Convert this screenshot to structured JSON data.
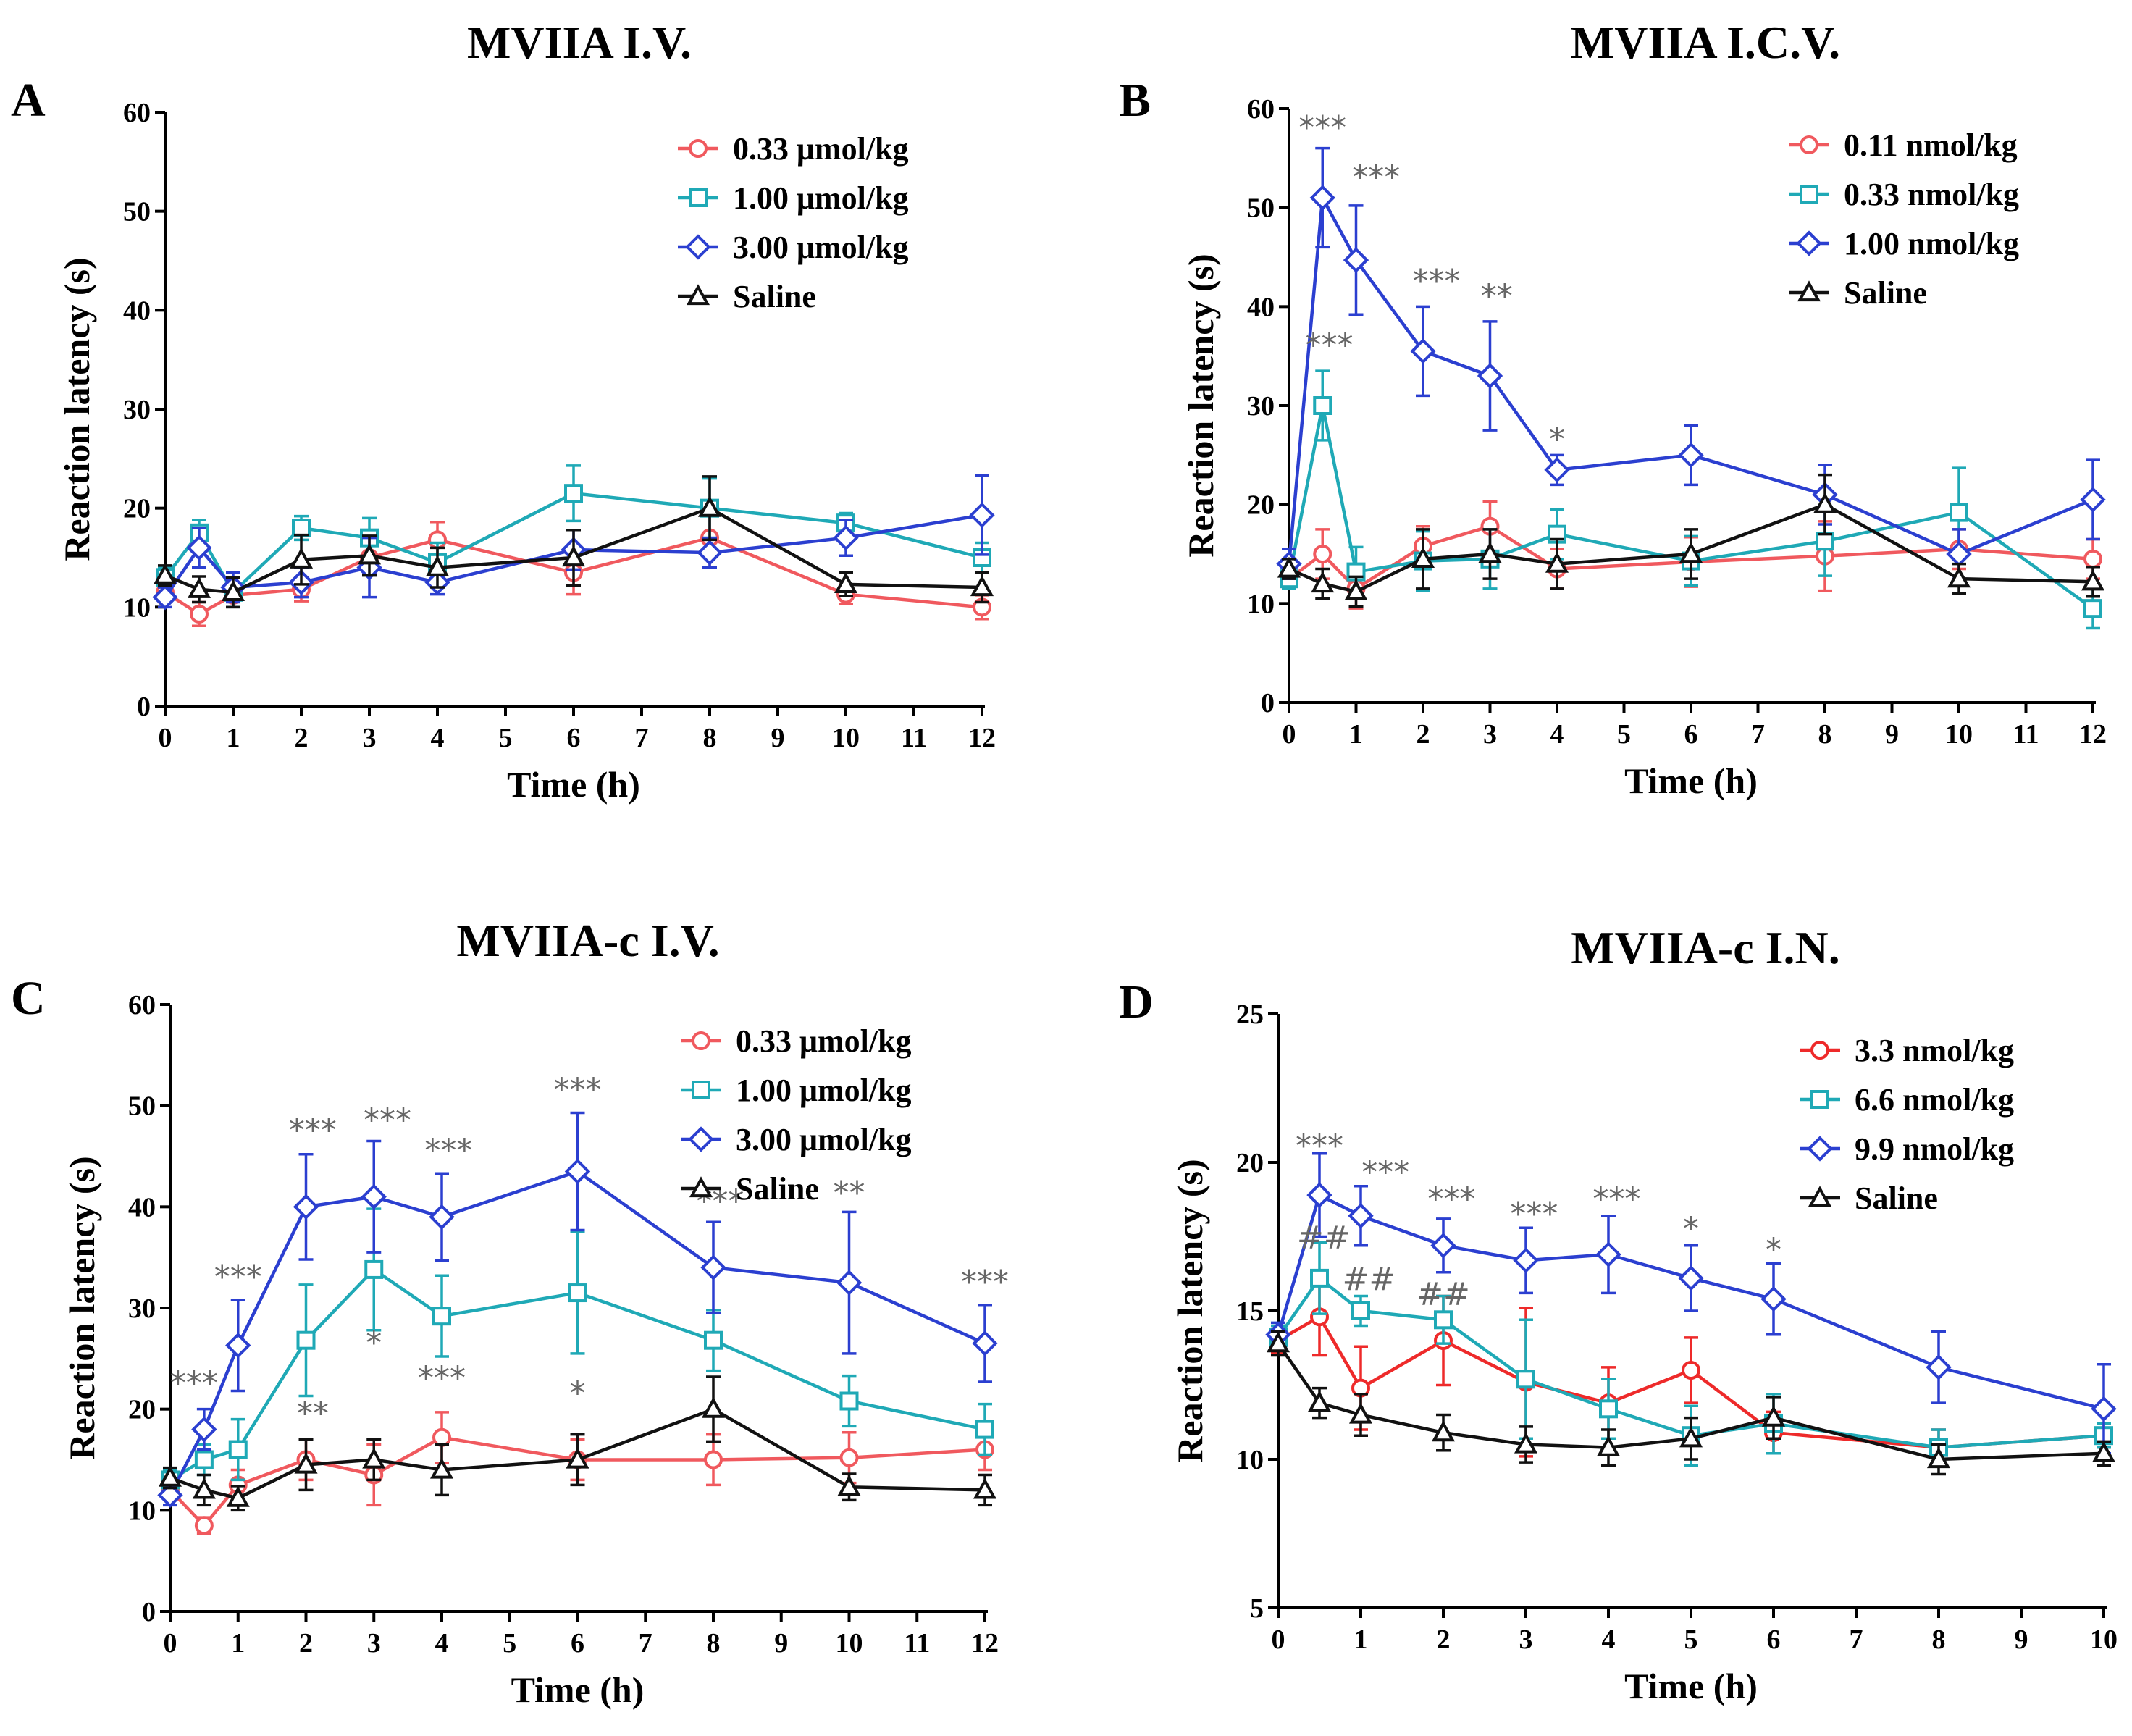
{
  "chart_data": [
    {
      "id": "A",
      "panel_label": "A",
      "title": "MVIIA I.V.",
      "type": "line",
      "xlabel": "Time (h)",
      "ylabel": "Reaction latency (s)",
      "xlim": [
        0,
        12
      ],
      "ylim": [
        0,
        60
      ],
      "xticks": [
        0,
        1,
        2,
        3,
        4,
        5,
        6,
        7,
        8,
        9,
        10,
        11,
        12
      ],
      "yticks": [
        0,
        10,
        20,
        30,
        40,
        50,
        60
      ],
      "legend_position": "top-right",
      "series": [
        {
          "name": "0.33 μmol/kg",
          "color": "#f0595e",
          "marker": "circle",
          "x": [
            0,
            0.5,
            1,
            2,
            3,
            4,
            6,
            8,
            10,
            12
          ],
          "values": [
            11.5,
            9.3,
            11.2,
            11.8,
            15,
            16.8,
            13.5,
            17,
            11.3,
            10
          ],
          "errors": [
            1,
            1.2,
            1.2,
            1.2,
            1.5,
            1.8,
            2.2,
            3,
            1,
            1.2
          ]
        },
        {
          "name": "1.00 μmol/kg",
          "color": "#1fa9b6",
          "marker": "square",
          "x": [
            0,
            0.5,
            1,
            2,
            3,
            4,
            6,
            8,
            10,
            12
          ],
          "values": [
            13,
            17.5,
            11.5,
            18,
            17,
            14.5,
            21.5,
            20,
            18.5,
            15
          ],
          "errors": [
            1,
            1.3,
            1.5,
            1.2,
            2,
            2,
            2.8,
            3,
            1,
            1.5
          ]
        },
        {
          "name": "3.00 μmol/kg",
          "color": "#2b3fd0",
          "marker": "diamond",
          "x": [
            0,
            0.5,
            1,
            2,
            3,
            4,
            6,
            8,
            10,
            12
          ],
          "values": [
            11,
            16,
            12,
            12.5,
            14,
            12.5,
            15.8,
            15.5,
            17,
            19.3
          ],
          "errors": [
            1,
            2,
            1.5,
            1.5,
            3,
            1.2,
            2,
            1.5,
            1.8,
            4
          ]
        },
        {
          "name": "Saline",
          "color": "#111111",
          "marker": "triangle",
          "x": [
            0,
            0.5,
            1,
            2,
            3,
            4,
            6,
            8,
            10,
            12
          ],
          "values": [
            13.2,
            11.8,
            11.5,
            14.8,
            15.2,
            14,
            15,
            20,
            12.3,
            12
          ],
          "errors": [
            1,
            1.3,
            1.5,
            2.5,
            2,
            2,
            2.8,
            3.2,
            1.2,
            1.5
          ]
        }
      ],
      "annotations": []
    },
    {
      "id": "B",
      "panel_label": "B",
      "title": "MVIIA I.C.V.",
      "type": "line",
      "xlabel": "Time (h)",
      "ylabel": "Reaction latency (s)",
      "xlim": [
        0,
        12
      ],
      "ylim": [
        0,
        60
      ],
      "xticks": [
        0,
        1,
        2,
        3,
        4,
        5,
        6,
        7,
        8,
        9,
        10,
        11,
        12
      ],
      "yticks": [
        0,
        10,
        20,
        30,
        40,
        50,
        60
      ],
      "legend_position": "top-right",
      "series": [
        {
          "name": "0.11 nmol/kg",
          "color": "#f0595e",
          "marker": "circle",
          "x": [
            0,
            0.5,
            1,
            2,
            3,
            4,
            6,
            8,
            10,
            12
          ],
          "values": [
            12.5,
            15,
            11.5,
            15.8,
            17.8,
            13.5,
            14.2,
            14.8,
            15.5,
            14.5
          ],
          "errors": [
            1,
            2.5,
            2,
            2,
            2.5,
            2,
            2.5,
            3.5,
            2,
            2
          ]
        },
        {
          "name": "0.33 nmol/kg",
          "color": "#1fa9b6",
          "marker": "square",
          "x": [
            0,
            0.5,
            1,
            2,
            3,
            4,
            6,
            8,
            10,
            12
          ],
          "values": [
            12.5,
            30,
            13.2,
            14.3,
            14.5,
            17,
            14.3,
            16.3,
            19.2,
            9.5
          ],
          "errors": [
            1,
            3.5,
            2.5,
            3,
            3,
            2.5,
            2.5,
            3.5,
            4.5,
            2
          ]
        },
        {
          "name": "1.00 nmol/kg",
          "color": "#2b3fd0",
          "marker": "diamond",
          "x": [
            0,
            0.5,
            1,
            2,
            3,
            4,
            6,
            8,
            10,
            12
          ],
          "values": [
            14,
            51,
            44.7,
            35.5,
            33,
            23.5,
            25,
            21,
            15,
            20.5
          ],
          "errors": [
            1.5,
            5,
            5.5,
            4.5,
            5.5,
            1.5,
            3,
            3,
            2.5,
            4
          ]
        },
        {
          "name": "Saline",
          "color": "#111111",
          "marker": "triangle",
          "x": [
            0,
            0.5,
            1,
            2,
            3,
            4,
            6,
            8,
            10,
            12
          ],
          "values": [
            13.5,
            12,
            11.2,
            14.5,
            15,
            14,
            15,
            20,
            12.5,
            12.2
          ],
          "errors": [
            1,
            1.5,
            1.5,
            3,
            2.5,
            2.5,
            2.5,
            3,
            1.5,
            1.5
          ]
        }
      ],
      "annotations": [
        {
          "x": 0.5,
          "y": 57,
          "text": "***"
        },
        {
          "x": 1.3,
          "y": 52,
          "text": "***"
        },
        {
          "x": 0.6,
          "y": 35,
          "text": "***"
        },
        {
          "x": 2.2,
          "y": 41.5,
          "text": "***"
        },
        {
          "x": 3.1,
          "y": 40,
          "text": "**"
        },
        {
          "x": 4,
          "y": 25.5,
          "text": "*"
        }
      ]
    },
    {
      "id": "C",
      "panel_label": "C",
      "title": "MVIIA-c I.V.",
      "type": "line",
      "xlabel": "Time (h)",
      "ylabel": "Reaction latency (s)",
      "xlim": [
        0,
        12
      ],
      "ylim": [
        0,
        60
      ],
      "xticks": [
        0,
        1,
        2,
        3,
        4,
        5,
        6,
        7,
        8,
        9,
        10,
        11,
        12
      ],
      "yticks": [
        0,
        10,
        20,
        30,
        40,
        50,
        60
      ],
      "legend_position": "top-right",
      "series": [
        {
          "name": "0.33 μmol/kg",
          "color": "#f0595e",
          "marker": "circle",
          "x": [
            0,
            0.5,
            1,
            2,
            3,
            4,
            6,
            8,
            10,
            12
          ],
          "values": [
            12,
            8.5,
            12.5,
            15,
            13.5,
            17.2,
            15,
            15,
            15.2,
            16
          ],
          "errors": [
            1,
            0.8,
            1.5,
            2,
            3,
            2.5,
            2,
            2.5,
            2.5,
            2
          ]
        },
        {
          "name": "1.00 μmol/kg",
          "color": "#1fa9b6",
          "marker": "square",
          "x": [
            0,
            0.5,
            1,
            2,
            3,
            4,
            6,
            8,
            10,
            12
          ],
          "values": [
            13,
            15,
            16,
            26.8,
            33.8,
            29.2,
            31.5,
            26.8,
            20.8,
            18
          ],
          "errors": [
            1,
            1.5,
            3,
            5.5,
            6,
            4,
            6,
            3,
            2.5,
            2.5
          ]
        },
        {
          "name": "3.00 μmol/kg",
          "color": "#2b3fd0",
          "marker": "diamond",
          "x": [
            0,
            0.5,
            1,
            2,
            3,
            4,
            6,
            8,
            10,
            12
          ],
          "values": [
            11.5,
            18,
            26.3,
            40,
            41,
            39,
            43.5,
            34,
            32.5,
            26.5
          ],
          "errors": [
            1,
            2,
            4.5,
            5.2,
            5.5,
            4.3,
            5.8,
            4.5,
            7,
            3.8
          ]
        },
        {
          "name": "Saline",
          "color": "#111111",
          "marker": "triangle",
          "x": [
            0,
            0.5,
            1,
            2,
            3,
            4,
            6,
            8,
            10,
            12
          ],
          "values": [
            13.2,
            12,
            11.2,
            14.5,
            15,
            14,
            15,
            20,
            12.3,
            12
          ],
          "errors": [
            1,
            1.5,
            1.2,
            2.5,
            2,
            2.5,
            2.5,
            3.2,
            1.3,
            1.5
          ]
        }
      ],
      "annotations": [
        {
          "x": 0.35,
          "y": 21.5,
          "text": "***"
        },
        {
          "x": 1,
          "y": 32,
          "text": "***"
        },
        {
          "x": 2.1,
          "y": 46.5,
          "text": "***"
        },
        {
          "x": 3.2,
          "y": 47.5,
          "text": "***"
        },
        {
          "x": 4.1,
          "y": 44.5,
          "text": "***"
        },
        {
          "x": 6,
          "y": 50.5,
          "text": "***"
        },
        {
          "x": 8.1,
          "y": 39.5,
          "text": "***"
        },
        {
          "x": 10,
          "y": 40.3,
          "text": "**"
        },
        {
          "x": 12,
          "y": 31.5,
          "text": "***"
        },
        {
          "x": 3,
          "y": 25.5,
          "text": "*"
        },
        {
          "x": 4,
          "y": 22,
          "text": "***"
        },
        {
          "x": 6,
          "y": 20.5,
          "text": "*"
        },
        {
          "x": 2.1,
          "y": 18.5,
          "text": "**"
        }
      ]
    },
    {
      "id": "D",
      "panel_label": "D",
      "title": "MVIIA-c I.N.",
      "type": "line",
      "xlabel": "Time (h)",
      "ylabel": "Reaction latency (s)",
      "xlim": [
        0,
        10
      ],
      "ylim": [
        5,
        25
      ],
      "xticks": [
        0,
        1,
        2,
        3,
        4,
        5,
        6,
        7,
        8,
        9,
        10
      ],
      "yticks": [
        5,
        10,
        15,
        20,
        25
      ],
      "legend_position": "top-right",
      "series": [
        {
          "name": "3.3 nmol/kg",
          "color": "#ee2a2a",
          "marker": "circle",
          "x": [
            0,
            0.5,
            1,
            2,
            3,
            4,
            5,
            6,
            8,
            10
          ],
          "values": [
            14,
            14.8,
            12.4,
            14,
            12.6,
            11.9,
            13,
            10.9,
            10.4,
            10.8
          ],
          "errors": [
            0.4,
            1.3,
            1.4,
            1.5,
            2.5,
            1.2,
            1.1,
            0.7,
            0.6,
            0.4
          ]
        },
        {
          "name": "6.6 nmol/kg",
          "color": "#1fa9b6",
          "marker": "square",
          "x": [
            0,
            0.5,
            1,
            2,
            3,
            4,
            5,
            6,
            8,
            10
          ],
          "values": [
            14.1,
            16.1,
            15,
            14.7,
            12.7,
            11.7,
            10.8,
            11.2,
            10.4,
            10.8
          ],
          "errors": [
            0.4,
            1.2,
            0.5,
            0.8,
            2,
            1,
            1,
            1,
            0.6,
            0.4
          ]
        },
        {
          "name": "9.9 nmol/kg",
          "color": "#2b3fd0",
          "marker": "diamond",
          "x": [
            0,
            0.5,
            1,
            2,
            3,
            4,
            5,
            6,
            8,
            10
          ],
          "values": [
            14.2,
            18.9,
            18.2,
            17.2,
            16.7,
            16.9,
            16.1,
            15.4,
            13.1,
            11.7
          ],
          "errors": [
            0.4,
            1.4,
            1,
            0.9,
            1.1,
            1.3,
            1.1,
            1.2,
            1.2,
            1.5
          ]
        },
        {
          "name": "Saline",
          "color": "#111111",
          "marker": "triangle",
          "x": [
            0,
            0.5,
            1,
            2,
            3,
            4,
            5,
            6,
            8,
            10
          ],
          "values": [
            13.9,
            11.9,
            11.5,
            10.9,
            10.5,
            10.4,
            10.7,
            11.4,
            10,
            10.2
          ],
          "errors": [
            0.4,
            0.5,
            0.7,
            0.6,
            0.6,
            0.6,
            0.7,
            0.7,
            0.5,
            0.4
          ]
        }
      ],
      "annotations": [
        {
          "x": 0.5,
          "y": 20.2,
          "text": "***"
        },
        {
          "x": 1.3,
          "y": 19.3,
          "text": "***"
        },
        {
          "x": 2.1,
          "y": 18.4,
          "text": "***"
        },
        {
          "x": 3.1,
          "y": 17.9,
          "text": "***"
        },
        {
          "x": 4.1,
          "y": 18.4,
          "text": "***"
        },
        {
          "x": 5,
          "y": 17.4,
          "text": "*"
        },
        {
          "x": 6,
          "y": 16.7,
          "text": "*"
        },
        {
          "x": 0.55,
          "y": 17.1,
          "text": "##"
        },
        {
          "x": 1.1,
          "y": 15.7,
          "text": "##"
        },
        {
          "x": 2,
          "y": 15.2,
          "text": "##"
        }
      ]
    }
  ]
}
